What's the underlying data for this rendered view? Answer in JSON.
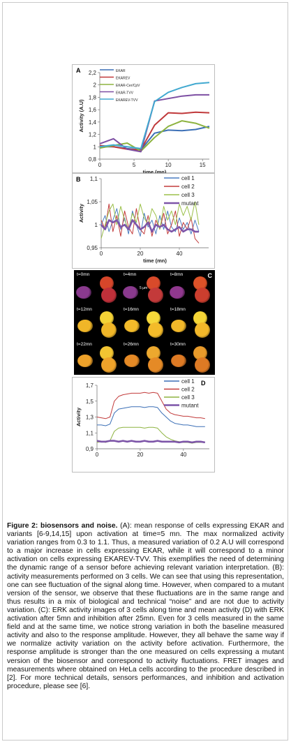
{
  "panelA": {
    "letter": "A",
    "ylabel": "Activity (A.U)",
    "xlabel": "time (mn)",
    "legend": [
      "EKAR",
      "EKAREV",
      "EKAR-Cer/CpV",
      "EKAR-TVV",
      "EKAREV-TVV"
    ]
  },
  "panelB": {
    "letter": "B",
    "ylabel": "Activity",
    "xlabel": "time (mn)",
    "legend": [
      "cell 1",
      "cell 2",
      "cell 3",
      "mutant"
    ]
  },
  "panelC": {
    "letter": "C",
    "scale": "5 µm",
    "labels": [
      "t=0mn",
      "t=4mn",
      "t=8mn",
      "t=12mn",
      "t=16mn",
      "t=18mn",
      "t=22mn",
      "t=26mn",
      "t=30mn"
    ]
  },
  "panelD": {
    "letter": "D",
    "ylabel": "Activity",
    "legend": [
      "cell 1",
      "cell 2",
      "cell 3",
      "mutant"
    ]
  },
  "chart_data": [
    {
      "type": "line",
      "x": [
        0,
        2,
        4,
        6,
        8,
        10,
        12,
        14,
        16
      ],
      "xlim": [
        0,
        16
      ],
      "ylim": [
        0.8,
        2.2
      ],
      "xticks": [
        0,
        5,
        10,
        15
      ],
      "yticks": [
        0.8,
        1,
        1.2,
        1.4,
        1.6,
        1.8,
        2,
        2.2
      ],
      "series": [
        {
          "name": "EKAR",
          "color": "#3b6fb6",
          "values": [
            1.0,
            1.0,
            0.97,
            0.95,
            1.22,
            1.27,
            1.26,
            1.28,
            1.33
          ]
        },
        {
          "name": "EKAREV",
          "color": "#c0393b",
          "values": [
            1.02,
            1.0,
            0.96,
            0.95,
            1.35,
            1.55,
            1.54,
            1.56,
            1.55
          ]
        },
        {
          "name": "EKAR-Cer/CpV",
          "color": "#8db340",
          "values": [
            0.98,
            1.02,
            1.06,
            0.93,
            1.15,
            1.33,
            1.42,
            1.38,
            1.3
          ]
        },
        {
          "name": "EKAR-TVV",
          "color": "#7d4fa3",
          "values": [
            1.05,
            1.13,
            0.96,
            0.92,
            1.74,
            1.78,
            1.82,
            1.84,
            1.84
          ]
        },
        {
          "name": "EKAREV-TVV",
          "color": "#41a9d0",
          "values": [
            1.0,
            1.03,
            1.0,
            0.97,
            1.73,
            1.88,
            1.96,
            2.02,
            2.04
          ]
        }
      ]
    },
    {
      "type": "line",
      "x": [
        0,
        2,
        4,
        6,
        8,
        10,
        12,
        14,
        16,
        18,
        20,
        22,
        24,
        26,
        28,
        30,
        32,
        34,
        36,
        38,
        40,
        42,
        44,
        46,
        48,
        50
      ],
      "xlim": [
        0,
        55
      ],
      "ylim": [
        0.95,
        1.1
      ],
      "xticks": [
        0,
        20,
        40
      ],
      "yticks": [
        0.95,
        1,
        1.05,
        1.1
      ],
      "series": [
        {
          "name": "cell 1",
          "color": "#4a7dc0",
          "values": [
            1.0,
            1.02,
            0.985,
            1.01,
            1.035,
            0.99,
            1.015,
            0.98,
            1.03,
            1.0,
            0.975,
            1.025,
            0.995,
            1.01,
            0.98,
            1.02,
            0.99,
            1.03,
            0.995,
            0.985,
            1.015,
            0.99,
            1.005,
            0.98,
            1.01,
            0.985
          ]
        },
        {
          "name": "cell 2",
          "color": "#c23b3b",
          "values": [
            1.01,
            0.99,
            1.045,
            0.985,
            1.02,
            0.975,
            1.03,
            0.995,
            0.98,
            1.035,
            0.99,
            0.98,
            1.02,
            0.975,
            1.01,
            0.99,
            1.025,
            0.98,
            1.0,
            1.03,
            0.975,
            1.005,
            0.99,
            1.015,
            0.97,
            0.96
          ]
        },
        {
          "name": "cell 3",
          "color": "#9bc04a",
          "values": [
            0.97,
            1.0,
            1.03,
            1.045,
            1.0,
            1.04,
            1.01,
            0.99,
            1.025,
            1.005,
            1.045,
            1.015,
            1.0,
            1.035,
            1.02,
            0.99,
            1.04,
            1.01,
            1.03,
            1.0,
            1.045,
            1.02,
            1.04,
            1.01,
            1.05,
            1.0
          ]
        },
        {
          "name": "mutant",
          "color": "#7d55a8",
          "values": [
            1.0,
            0.99,
            1.01,
            1.005,
            1.01,
            0.995,
            1.0,
            0.99,
            1.01,
            1.0,
            0.99,
            0.995,
            1.005,
            0.985,
            1.0,
            0.995,
            1.0,
            0.99,
            0.985,
            0.99,
            0.995,
            0.985,
            0.99,
            0.99,
            0.985,
            0.985
          ]
        }
      ]
    },
    {
      "type": "line",
      "x": [
        0,
        2,
        4,
        6,
        8,
        10,
        12,
        14,
        16,
        18,
        20,
        22,
        24,
        26,
        28,
        30,
        32,
        34,
        36,
        38,
        40,
        42,
        44,
        46,
        48,
        50
      ],
      "xlim": [
        0,
        52
      ],
      "ylim": [
        0.9,
        1.7
      ],
      "xticks": [
        0,
        20,
        40
      ],
      "yticks": [
        0.9,
        1.1,
        1.3,
        1.5,
        1.7
      ],
      "series": [
        {
          "name": "cell 1",
          "color": "#3b6fb6",
          "values": [
            1.2,
            1.2,
            1.19,
            1.21,
            1.35,
            1.4,
            1.41,
            1.42,
            1.43,
            1.43,
            1.43,
            1.42,
            1.43,
            1.43,
            1.42,
            1.35,
            1.3,
            1.25,
            1.22,
            1.21,
            1.2,
            1.2,
            1.19,
            1.18,
            1.18,
            1.18
          ]
        },
        {
          "name": "cell 2",
          "color": "#c23b3b",
          "values": [
            1.3,
            1.29,
            1.28,
            1.3,
            1.5,
            1.56,
            1.58,
            1.59,
            1.6,
            1.6,
            1.6,
            1.61,
            1.6,
            1.61,
            1.6,
            1.5,
            1.4,
            1.35,
            1.33,
            1.32,
            1.31,
            1.31,
            1.3,
            1.29,
            1.29,
            1.28
          ]
        },
        {
          "name": "cell 3",
          "color": "#8db340",
          "values": [
            0.98,
            0.99,
            0.98,
            1.0,
            1.12,
            1.16,
            1.17,
            1.17,
            1.17,
            1.17,
            1.17,
            1.16,
            1.17,
            1.17,
            1.16,
            1.1,
            1.05,
            1.02,
            1.0,
            0.99,
            0.98,
            0.98,
            0.97,
            0.98,
            0.98,
            0.98
          ]
        },
        {
          "name": "mutant",
          "color": "#7d55a8",
          "values": [
            1.0,
            0.99,
            0.99,
            1.0,
            1.0,
            0.99,
            1.0,
            0.99,
            1.0,
            0.99,
            0.99,
            1.0,
            0.99,
            0.99,
            1.0,
            0.99,
            0.99,
            0.99,
            0.99,
            0.98,
            0.99,
            0.99,
            0.98,
            0.99,
            0.99,
            0.98
          ]
        }
      ]
    }
  ],
  "caption": {
    "title": "Figure 2: biosensors and noise.",
    "body": " (A): mean response of cells expressing EKAR and variants [6-9,14,15] upon activation at time=5 mn. The max normalized activity variation ranges from 0.3 to 1.1. Thus, a measured variation of 0.2 A.U will correspond to a major increase in cells expressing EKAR, while it will correspond to a minor activation on cells expressing EKAREV-TVV. This exemplifies the need of determining the dynamic range of a sensor before achieving relevant variation interpretation. (B): activity measurements performed on 3 cells. We can see that using this representation, one can see fluctuation of the signal along time. However, when compared to a mutant version of the sensor, we observe that these fluctuations are in the same range and thus results in a mix of biological and technical “noise” and are not due to activity variation. (C):  ERK activity images of 3 cells along time and mean activity (D) with ERK activation after 5mn and inhibition after 25mn. Even for 3 cells measured in the same field and at the same time, we notice strong variation in both the baseline measured activity and also to the response amplitude. However, they all behave the same way if we normalize activity variation on the activity before activation. Furthermore, the response amplitude is stronger than the one measured on cells expressing a mutant version of the biosensor and correspond to activity fluctuations. FRET images and measurements where obtained on HeLa cells according to the procedure described in [2]. For more technical details, sensors performances, and inhibition and activation procedure, please see [6]."
  }
}
